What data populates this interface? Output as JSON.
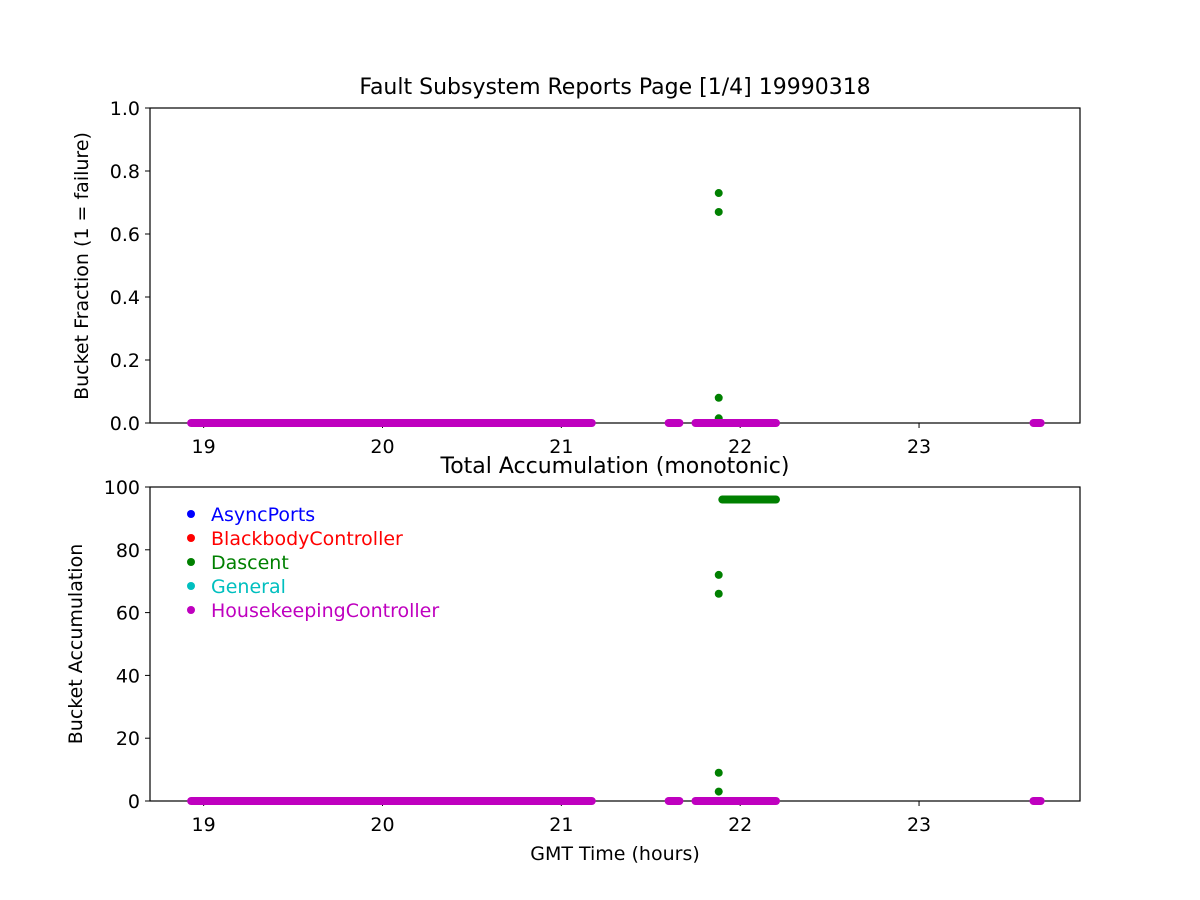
{
  "chart_data": [
    {
      "type": "scatter",
      "title": "Fault Subsystem Reports Page [1/4] 19990318",
      "xlabel": "",
      "ylabel": "Bucket Fraction (1 = failure)",
      "xlim": [
        18.7,
        23.9
      ],
      "ylim": [
        0.0,
        1.0
      ],
      "xticks": [
        "19",
        "20",
        "21",
        "22",
        "23"
      ],
      "yticks": [
        "0.0",
        "0.2",
        "0.4",
        "0.6",
        "0.8",
        "1.0"
      ],
      "grid": false,
      "series": [
        {
          "name": "Dascent",
          "color": "#008000",
          "points": [
            [
              21.88,
              0.73
            ],
            [
              21.88,
              0.67
            ],
            [
              21.88,
              0.08
            ],
            [
              21.88,
              0.015
            ]
          ]
        },
        {
          "name": "HousekeepingController",
          "color": "#bf00bf",
          "ranges": [
            [
              18.93,
              21.17
            ],
            [
              21.6,
              21.66
            ],
            [
              21.75,
              22.2
            ],
            [
              23.64,
              23.68
            ]
          ],
          "value": 0.0
        }
      ]
    },
    {
      "type": "scatter",
      "title": "Total Accumulation (monotonic)",
      "xlabel": "GMT Time (hours)",
      "ylabel": "Bucket Accumulation",
      "xlim": [
        18.7,
        23.9
      ],
      "ylim": [
        0,
        100
      ],
      "xticks": [
        "19",
        "20",
        "21",
        "22",
        "23"
      ],
      "yticks": [
        "0",
        "20",
        "40",
        "60",
        "80",
        "100"
      ],
      "grid": false,
      "legend_position": "top-left",
      "legend": [
        {
          "label": "AsyncPorts",
          "color": "#0000ff"
        },
        {
          "label": "BlackbodyController",
          "color": "#ff0000"
        },
        {
          "label": "Dascent",
          "color": "#008000"
        },
        {
          "label": "General",
          "color": "#00bfbf"
        },
        {
          "label": "HousekeepingController",
          "color": "#bf00bf"
        }
      ],
      "series": [
        {
          "name": "Dascent",
          "color": "#008000",
          "points": [
            [
              21.88,
              72
            ],
            [
              21.88,
              66
            ],
            [
              21.88,
              9
            ],
            [
              21.88,
              3
            ]
          ],
          "ranges": [
            [
              21.9,
              22.2
            ]
          ],
          "value": 96
        },
        {
          "name": "HousekeepingController",
          "color": "#bf00bf",
          "ranges": [
            [
              18.93,
              21.17
            ],
            [
              21.6,
              21.66
            ],
            [
              21.75,
              22.2
            ],
            [
              23.64,
              23.68
            ]
          ],
          "value": 0
        }
      ]
    }
  ]
}
